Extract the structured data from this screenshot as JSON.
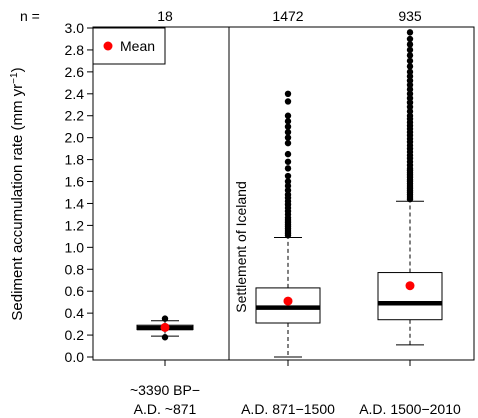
{
  "chart_data": {
    "type": "box",
    "ylabel": "Sediment accumulation rate (mm yr",
    "ylabel_sup": "−1",
    "ylabel_close": ")",
    "ylim": [
      0,
      3.0
    ],
    "yticks": [
      "0.0",
      "0.2",
      "0.4",
      "0.6",
      "0.8",
      "1.0",
      "1.2",
      "1.4",
      "1.6",
      "1.8",
      "2.0",
      "2.2",
      "2.4",
      "2.6",
      "2.8",
      "3.0"
    ],
    "n_label": "n =",
    "legend": {
      "label": "Mean",
      "position": "top-left"
    },
    "annotation": "Settlement of Iceland",
    "groups": [
      {
        "label_lines": [
          "~3390 BP−",
          "A.D. ~871"
        ],
        "n": "18",
        "whisker_low": 0.19,
        "q1": 0.25,
        "median": 0.265,
        "q3": 0.29,
        "whisker_high": 0.33,
        "mean": 0.27,
        "outliers": [
          0.18,
          0.35
        ]
      },
      {
        "label_lines": [
          "A.D. 871−1500"
        ],
        "n": "1472",
        "whisker_low": 0.0,
        "q1": 0.31,
        "median": 0.45,
        "q3": 0.63,
        "whisker_high": 1.09,
        "mean": 0.51,
        "outliers": [
          1.11,
          1.13,
          1.15,
          1.17,
          1.19,
          1.21,
          1.23,
          1.25,
          1.27,
          1.3,
          1.33,
          1.36,
          1.39,
          1.42,
          1.45,
          1.48,
          1.52,
          1.56,
          1.6,
          1.65,
          1.72,
          1.78,
          1.85,
          1.95,
          2.0,
          2.05,
          2.1,
          2.15,
          2.2,
          2.33,
          2.4
        ]
      },
      {
        "label_lines": [
          "A.D. 1500−2010"
        ],
        "n": "935",
        "whisker_low": 0.11,
        "q1": 0.34,
        "median": 0.49,
        "q3": 0.77,
        "whisker_high": 1.42,
        "mean": 0.65,
        "outliers": [
          1.44,
          1.46,
          1.48,
          1.5,
          1.52,
          1.54,
          1.56,
          1.58,
          1.6,
          1.62,
          1.64,
          1.66,
          1.68,
          1.7,
          1.72,
          1.75,
          1.78,
          1.81,
          1.84,
          1.87,
          1.9,
          1.93,
          1.96,
          1.99,
          2.02,
          2.05,
          2.08,
          2.11,
          2.14,
          2.17,
          2.2,
          2.24,
          2.28,
          2.32,
          2.36,
          2.4,
          2.44,
          2.48,
          2.52,
          2.56,
          2.6,
          2.65,
          2.7,
          2.75,
          2.8,
          2.85,
          2.9,
          2.96
        ]
      }
    ],
    "colors": {
      "mean": "#ff0000",
      "points": "#000000",
      "box": "#ffffff",
      "line": "#000000"
    }
  }
}
